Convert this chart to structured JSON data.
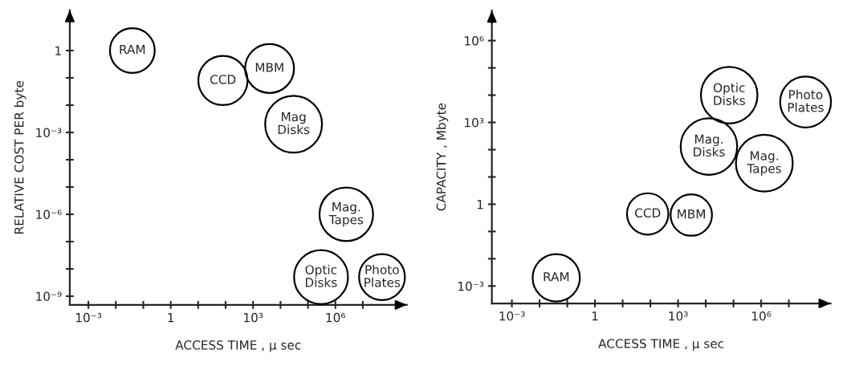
{
  "chart_data": [
    {
      "type": "bubble",
      "xlabel": "ACCESS TIME , μ sec",
      "ylabel": "RELATIVE COST PER byte",
      "log": "xy",
      "grid": false,
      "legend": false,
      "x": [
        0.04,
        80,
        4000,
        30000,
        2500000,
        300000,
        50000000
      ],
      "values": [
        1,
        0.08,
        0.22,
        0.002,
        1e-06,
        5e-09,
        5e-09
      ],
      "sizes": [
        0.62,
        0.75,
        0.74,
        1,
        0.89,
        0.9,
        0.65
      ],
      "annotations": [
        {
          "text": "RAM",
          "x": 0.04,
          "y": 1
        },
        {
          "text": "CCD",
          "x": 80,
          "y": 0.08
        },
        {
          "text": "MBM",
          "x": 4000,
          "y": 0.22
        },
        {
          "text": "Mag\nDisks",
          "x": 30000,
          "y": 0.002
        },
        {
          "text": "Mag.\nTapes",
          "x": 2500000,
          "y": 1e-06
        },
        {
          "text": "Optic\nDisks",
          "x": 300000,
          "y": 5e-09
        },
        {
          "text": "Photo\nPlates",
          "x": 50000000,
          "y": 5e-09
        }
      ],
      "xlim": [
        0.00021,
        400000000
      ],
      "ylim": [
        4.8e-10,
        30
      ],
      "xticks": [
        {
          "value": 0.001,
          "label": "10⁻³"
        },
        {
          "value": 0.01,
          "label": null
        },
        {
          "value": 0.1,
          "label": null
        },
        1,
        {
          "value": 10,
          "label": null
        },
        {
          "value": 100,
          "label": null
        },
        {
          "value": 1000,
          "label": "10³"
        },
        {
          "value": 10000,
          "label": null
        },
        {
          "value": 100000,
          "label": null
        },
        {
          "value": 1000000,
          "label": "10⁶"
        },
        {
          "value": 10000000,
          "label": null
        }
      ],
      "yticks": [
        {
          "value": 1e-09,
          "label": "10⁻⁹"
        },
        {
          "value": 1e-08,
          "label": null
        },
        {
          "value": 1e-07,
          "label": null
        },
        {
          "value": 1e-06,
          "label": "10⁻⁶"
        },
        {
          "value": 1e-05,
          "label": null
        },
        {
          "value": 0.0001,
          "label": null
        },
        {
          "value": 0.001,
          "label": "10⁻³"
        },
        {
          "value": 0.01,
          "label": null
        },
        {
          "value": 0.1,
          "label": null
        },
        1
      ]
    },
    {
      "type": "bubble",
      "xlabel": "ACCESS TIME , μ sec",
      "ylabel": "CAPACITY , Mbyte",
      "log": "xy",
      "grid": false,
      "legend": false,
      "x": [
        0.04,
        80,
        3000,
        13000,
        1300000,
        70000,
        40000000
      ],
      "values": [
        0.002,
        0.44,
        0.4,
        130,
        32,
        10000,
        5600
      ],
      "sizes": [
        0.69,
        0.53,
        0.53,
        0.99,
        1,
        0.99,
        0.8
      ],
      "annotations": [
        {
          "text": "RAM",
          "x": 0.04,
          "y": 0.002
        },
        {
          "text": "CCD",
          "x": 80,
          "y": 0.44
        },
        {
          "text": "MBM",
          "x": 3000,
          "y": 0.4
        },
        {
          "text": "Mag.\nDisks",
          "x": 13000,
          "y": 130
        },
        {
          "text": "Mag.\nTapes",
          "x": 1300000,
          "y": 32
        },
        {
          "text": "Optic\nDisks",
          "x": 70000,
          "y": 10000
        },
        {
          "text": "Photo\nPlates",
          "x": 40000000,
          "y": 5600
        }
      ],
      "xlim": [
        0.00019,
        320000000
      ],
      "ylim": [
        0.00023,
        12600000
      ],
      "xticks": [
        {
          "value": 0.001,
          "label": "10⁻³"
        },
        {
          "value": 0.01,
          "label": null
        },
        {
          "value": 0.1,
          "label": null
        },
        1,
        {
          "value": 10,
          "label": null
        },
        {
          "value": 100,
          "label": null
        },
        {
          "value": 1000,
          "label": "10³"
        },
        {
          "value": 10000,
          "label": null
        },
        {
          "value": 100000,
          "label": null
        },
        {
          "value": 1000000,
          "label": "10⁶"
        },
        {
          "value": 10000000,
          "label": null
        }
      ],
      "yticks": [
        {
          "value": 0.001,
          "label": "10⁻³"
        },
        {
          "value": 0.01,
          "label": null
        },
        {
          "value": 0.1,
          "label": null
        },
        1,
        {
          "value": 10,
          "label": null
        },
        {
          "value": 100,
          "label": null
        },
        {
          "value": 1000,
          "label": "10³"
        },
        {
          "value": 10000,
          "label": null
        },
        {
          "value": 100000,
          "label": null
        },
        {
          "value": 1000000,
          "label": "10⁶"
        }
      ]
    }
  ]
}
